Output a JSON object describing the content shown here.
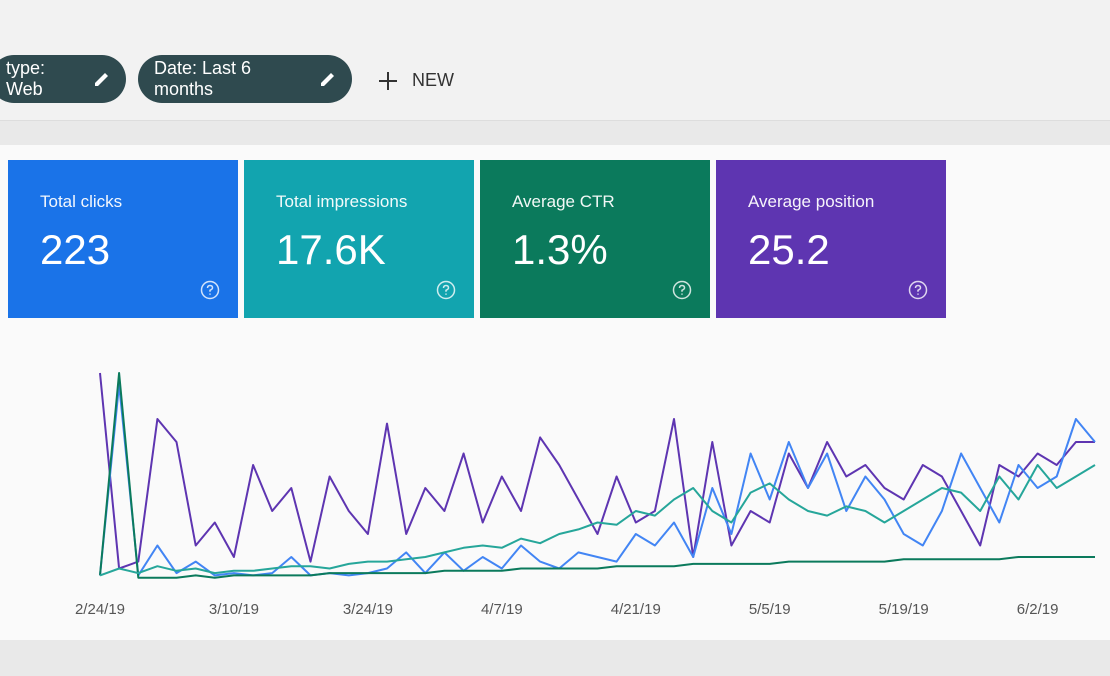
{
  "filters": [
    "type: Web",
    "Date: Last 6 months"
  ],
  "new_button": "NEW",
  "cards": [
    {
      "title": "Total clicks",
      "value": "223",
      "color": "#1a73e8"
    },
    {
      "title": "Total impressions",
      "value": "17.6K",
      "color": "#12a4af"
    },
    {
      "title": "Average CTR",
      "value": "1.3%",
      "color": "#0b7a5c"
    },
    {
      "title": "Average position",
      "value": "25.2",
      "color": "#5e35b1"
    }
  ],
  "chart_data": {
    "type": "line",
    "ylim": [
      0,
      100
    ],
    "x": [
      "2/24/19",
      "2/26/19",
      "2/28/19",
      "3/2/19",
      "3/4/19",
      "3/6/19",
      "3/8/19",
      "3/10/19",
      "3/12/19",
      "3/14/19",
      "3/16/19",
      "3/18/19",
      "3/20/19",
      "3/22/19",
      "3/24/19",
      "3/26/19",
      "3/28/19",
      "3/30/19",
      "4/1/19",
      "4/3/19",
      "4/5/19",
      "4/7/19",
      "4/9/19",
      "4/11/19",
      "4/13/19",
      "4/15/19",
      "4/17/19",
      "4/19/19",
      "4/21/19",
      "4/23/19",
      "4/25/19",
      "4/27/19",
      "4/29/19",
      "5/1/19",
      "5/3/19",
      "5/5/19",
      "5/7/19",
      "5/9/19",
      "5/11/19",
      "5/13/19",
      "5/15/19",
      "5/17/19",
      "5/19/19",
      "5/21/19",
      "5/23/19",
      "5/25/19",
      "5/27/19",
      "5/29/19",
      "5/31/19",
      "6/2/19",
      "6/4/19",
      "6/6/19",
      "6/8/19"
    ],
    "xticks": [
      "2/24/19",
      "3/10/19",
      "3/24/19",
      "4/7/19",
      "4/21/19",
      "5/5/19",
      "5/19/19",
      "6/2/19"
    ],
    "series": [
      {
        "color": "#5e35b1",
        "values": [
          90,
          5,
          8,
          70,
          60,
          15,
          25,
          10,
          50,
          30,
          40,
          8,
          45,
          30,
          20,
          68,
          20,
          40,
          30,
          55,
          25,
          45,
          30,
          62,
          50,
          35,
          20,
          45,
          25,
          30,
          70,
          10,
          60,
          15,
          30,
          25,
          55,
          40,
          60,
          45,
          50,
          40,
          35,
          50,
          45,
          30,
          15,
          50,
          45,
          55,
          50,
          60,
          60
        ]
      },
      {
        "color": "#4285f4",
        "values": [
          2,
          85,
          2,
          15,
          3,
          8,
          2,
          3,
          2,
          3,
          10,
          2,
          3,
          2,
          3,
          5,
          12,
          3,
          12,
          4,
          10,
          5,
          15,
          8,
          5,
          12,
          10,
          8,
          20,
          15,
          25,
          10,
          40,
          20,
          55,
          35,
          60,
          40,
          55,
          30,
          45,
          35,
          20,
          15,
          30,
          55,
          40,
          25,
          50,
          40,
          45,
          70,
          60
        ]
      },
      {
        "color": "#0b7a5c",
        "values": [
          2,
          90,
          1,
          1,
          1,
          2,
          1,
          2,
          2,
          2,
          2,
          2,
          3,
          3,
          3,
          3,
          3,
          3,
          4,
          4,
          4,
          4,
          5,
          5,
          5,
          5,
          5,
          6,
          6,
          6,
          6,
          7,
          7,
          7,
          7,
          7,
          8,
          8,
          8,
          8,
          8,
          8,
          9,
          9,
          9,
          9,
          9,
          9,
          10,
          10,
          10,
          10,
          10
        ]
      },
      {
        "color": "#26a69a",
        "values": [
          2,
          5,
          3,
          6,
          4,
          5,
          3,
          4,
          4,
          5,
          6,
          6,
          5,
          7,
          8,
          8,
          9,
          10,
          12,
          14,
          15,
          14,
          18,
          16,
          20,
          22,
          25,
          24,
          30,
          28,
          35,
          40,
          30,
          25,
          38,
          42,
          35,
          30,
          28,
          32,
          30,
          25,
          30,
          35,
          40,
          38,
          30,
          45,
          35,
          50,
          40,
          45,
          50
        ]
      }
    ]
  }
}
